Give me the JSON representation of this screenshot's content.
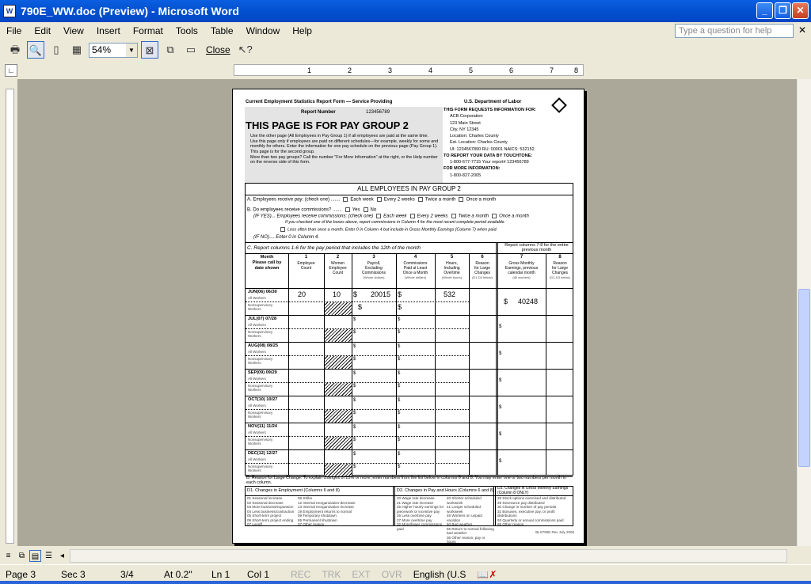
{
  "window": {
    "title": "790E_WW.doc (Preview) - Microsoft Word",
    "app_icon": "word-icon"
  },
  "menu": [
    "File",
    "Edit",
    "View",
    "Insert",
    "Format",
    "Tools",
    "Table",
    "Window",
    "Help"
  ],
  "help_placeholder": "Type a question for help",
  "toolbar": {
    "zoom": "54%",
    "close_label": "Close"
  },
  "status": {
    "page": "Page 3",
    "sec": "Sec 3",
    "pages": "3/4",
    "at": "At 0.2\"",
    "ln": "Ln 1",
    "col": "Col 1",
    "rec": "REC",
    "trk": "TRK",
    "ext": "EXT",
    "ovr": "OVR",
    "lang": "English (U.S"
  },
  "ruler": [
    "1",
    "2",
    "3",
    "4",
    "5",
    "6",
    "7",
    "8"
  ],
  "doc": {
    "form_title": "Current Employment Statistics Report Form — Service Providing",
    "agency": "U.S. Department of Labor",
    "report_number_label": "Report Number",
    "report_number": "123456789",
    "headline": "THIS PAGE IS FOR PAY GROUP 2",
    "bullets": [
      "Use the other page (All Employees in Pay Group 1) if all employees are paid at the same time.",
      "Use this page only if employees are paid on different schedules—for example, weekly for some and monthly for others. Enter the information for one pay schedule on the previous page (Pay Group 1). This page is for the second group.",
      "More than two pay groups? Call the number \"For More Information\" at the right, or the Help number on the reverse side of this form."
    ],
    "right_info": [
      "THIS FORM REQUESTS INFORMATION FOR:",
      "ACB Corporation",
      "123 Main Street",
      "City, NY  12345",
      "Location: Charles County",
      "Est. Location: Charles County",
      "UI: 1234567890   RU: 00001   NAICS: 532152",
      "TO REPORT YOUR DATA BY TOUCHTONE:",
      "1-800-677-7715    Your report# 123456789",
      "FOR MORE INFORMATION:",
      "1-800-827-2005"
    ],
    "section_title": "ALL EMPLOYEES IN PAY GROUP 2",
    "a_line": "A.  Employees receive pay: (check one) .......",
    "pay_opts": [
      "Each week",
      "Every 2 weeks",
      "Twice a month",
      "Once a month"
    ],
    "b_line": "B.  Do employees receive commissions? .......",
    "yes": "Yes",
    "no": "No",
    "ifyes": "(IF YES)... Employees receive commissions: (check one)",
    "ifyes_note": "If you checked one of the boxes above, report commissions in Column 4 for the most recent complete period available.",
    "less_often": "Less often than once a month. Enter 0 in Column 4 but include in Gross Monthly Earnings (Column 7) when paid.",
    "ifno": "(IF NO).... Enter 0 in Column 4.",
    "c_line": "C.   Report columns 1-6 for the pay period that includes the 12th of the month",
    "c_right": "Report columns 7-8 for the entire previous month",
    "cols": [
      {
        "num": "",
        "label": "Month\nPlease call by\ndate shown",
        "sub": ""
      },
      {
        "num": "1",
        "label": "Employee\nCount",
        "sub": ""
      },
      {
        "num": "2",
        "label": "Women\nEmployee\nCount",
        "sub": ""
      },
      {
        "num": "3",
        "label": "Payroll,\nExcluding\nCommissions",
        "sub": "(Whole dollars)"
      },
      {
        "num": "4",
        "label": "Commissions\nPaid at Least\nOnce a Month",
        "sub": "(Whole dollars)"
      },
      {
        "num": "5",
        "label": "Hours,\nIncluding\nOvertime",
        "sub": "(Whole hours)"
      },
      {
        "num": "6",
        "label": "Reason\nfor Large\nChanges",
        "sub": "(D1-D3 below)"
      },
      {
        "num": "7",
        "label": "Gross Monthly\nEarnings, previous\ncalendar month",
        "sub": "(All workers)"
      },
      {
        "num": "8",
        "label": "Reason\nfor Large\nChanges",
        "sub": "(D1-D3 below)"
      }
    ],
    "all_workers": "All Workers",
    "nonsup": "Nonsupervisory\nWorkers",
    "dollar": "$",
    "months": [
      {
        "month": "JUN(06) 06/30",
        "c1": "20",
        "c2": "10",
        "c3": "20015",
        "c5": "532",
        "c7": "40248"
      },
      {
        "month": "JUL(07) 07/28"
      },
      {
        "month": "AUG(08) 08/25"
      },
      {
        "month": "SEP(09) 09/29"
      },
      {
        "month": "OCT(10) 10/27"
      },
      {
        "month": "NOV(11) 11/24"
      },
      {
        "month": "DEC(12) 12/27"
      }
    ],
    "d_line": "D.  Reason for Large Change: To explain changes of 25% or more, enter numbers from the list below in columns 6 and 8. You may enter one or two numbers per month in each column.",
    "d1_title": "D1.  Changes in Employment (Columns 6 and 8)",
    "d1a": [
      "01 Seasonal increase",
      "02 Seasonal decrease",
      "03 More business/expansion",
      "04 Less business/contraction",
      "05 Short-term project",
      "06 Short-term project ending",
      "07 Layoff"
    ],
    "d1b": [
      "08 Strike",
      "12 Internal reorganization-decrease",
      "13 Internal reorganization-increase",
      "19 Employment returns to normal",
      "09 Temporary shutdown",
      "65 Permanent shutdown",
      "37 Other reason"
    ],
    "d2_title": "D2.  Changes in Pay and Hours (Columns 6 and 8)",
    "d2a": [
      "20 Wage rate decrease",
      "21 Wage rate increase",
      "25 Higher hourly earnings for piecework or incentive pay",
      "26 Less overtime pay",
      "27 More overtime pay",
      "32 More/fewer commissions paid"
    ],
    "d2b": [
      "40 Shorter scheduled workweek",
      "41 Longer scheduled workweek",
      "46 Workers on unpaid vacation",
      "50 Bad weather",
      "55 Return to normal following bad weather",
      "36 Other reason, pay or hours"
    ],
    "d3_title": "D3.  Changes in Gross Monthly Earnings (Column 8 ONLY)",
    "d3": [
      "28 Stock options exercised and distributed",
      "29 Severance pay distributed",
      "30 Change in number of pay periods",
      "31 Bonuses, executive pay, or profit distributions",
      "93 Quarterly or annual commissions paid",
      "95 Other reason"
    ],
    "footer": "BLS790E Rev July 2006"
  }
}
